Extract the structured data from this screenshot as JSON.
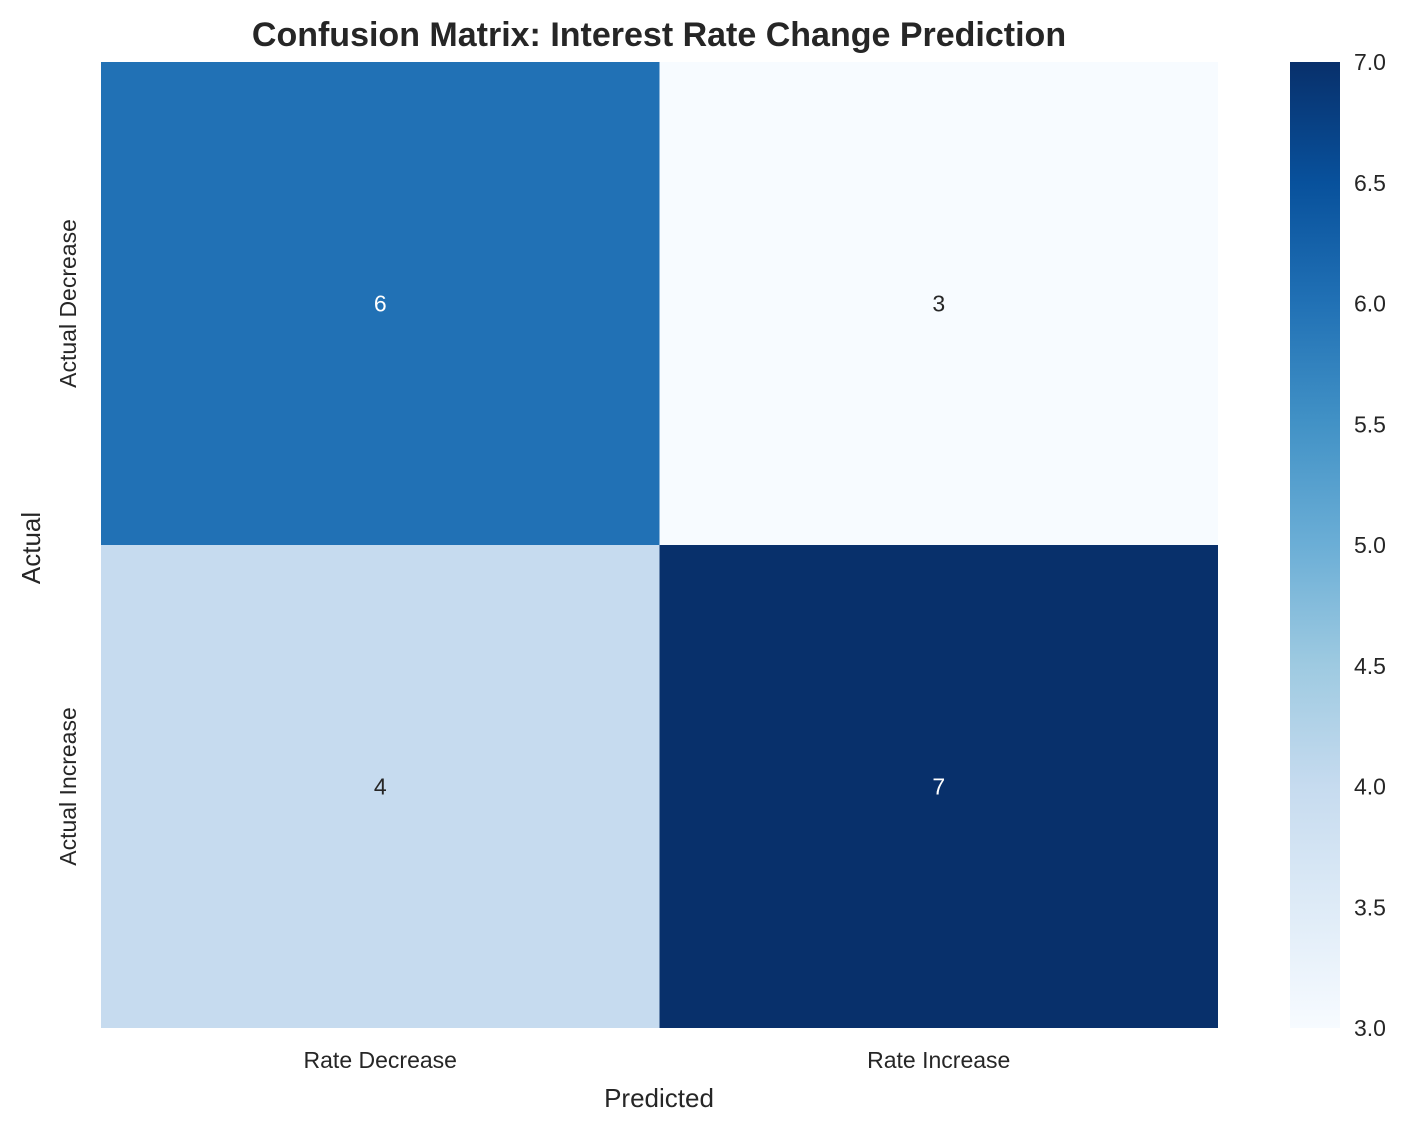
{
  "chart_data": {
    "type": "heatmap",
    "title": "Confusion Matrix: Interest Rate Change Prediction",
    "xlabel": "Predicted",
    "ylabel": "Actual",
    "x_categories": [
      "Rate Decrease",
      "Rate Increase"
    ],
    "y_categories": [
      "Actual Decrease",
      "Actual Increase"
    ],
    "values": [
      [
        6,
        3
      ],
      [
        4,
        7
      ]
    ],
    "colormap": "Blues",
    "color_range": [
      3,
      7
    ],
    "colorbar_ticks": [
      "3.0",
      "3.5",
      "4.0",
      "4.5",
      "5.0",
      "5.5",
      "6.0",
      "6.5",
      "7.0"
    ],
    "annotate": true,
    "grid": false,
    "colorbar_position": "right"
  }
}
